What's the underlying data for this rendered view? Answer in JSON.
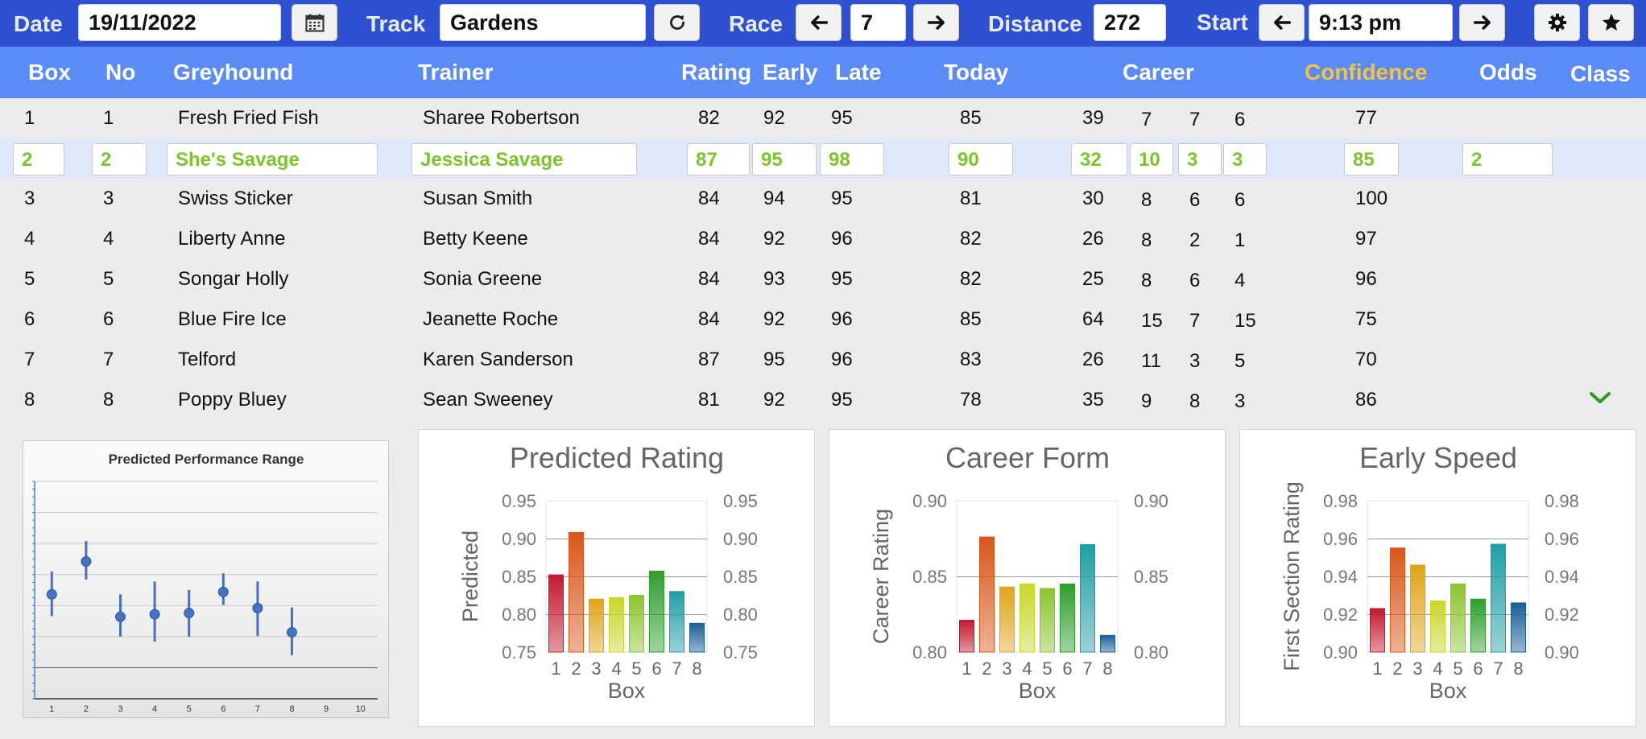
{
  "toolbar": {
    "date_label": "Date",
    "date_value": "19/11/2022",
    "calendar_icon": "calendar-icon",
    "track_label": "Track",
    "track_value": "Gardens",
    "refresh_icon": "refresh-icon",
    "race_label": "Race",
    "race_value": "7",
    "distance_label": "Distance",
    "distance_value": "272",
    "start_label": "Start",
    "start_value": "9:13 pm",
    "settings_icon": "gear-icon",
    "favorite_icon": "star-icon"
  },
  "table": {
    "headers": {
      "box": "Box",
      "no": "No",
      "greyhound": "Greyhound",
      "trainer": "Trainer",
      "rating": "Rating",
      "early": "Early",
      "late": "Late",
      "today": "Today",
      "career": "Career",
      "confidence": "Confidence",
      "odds": "Odds",
      "class": "Class"
    },
    "rows": [
      {
        "box": "1",
        "no": "1",
        "greyhound": "Fresh Fried Fish",
        "trainer": "Sharee Robertson",
        "rating": "82",
        "early": "92",
        "late": "95",
        "today": "85",
        "career_a": "39",
        "career_b": "7",
        "career_c": "7",
        "career_d": "6",
        "confidence": "77",
        "odds": "",
        "class": ""
      },
      {
        "box": "2",
        "no": "2",
        "greyhound": "She's Savage",
        "trainer": "Jessica Savage",
        "rating": "87",
        "early": "95",
        "late": "98",
        "today": "90",
        "career_a": "32",
        "career_b": "10",
        "career_c": "3",
        "career_d": "3",
        "confidence": "85",
        "odds": "2",
        "class": ""
      },
      {
        "box": "3",
        "no": "3",
        "greyhound": "Swiss Sticker",
        "trainer": "Susan Smith",
        "rating": "84",
        "early": "94",
        "late": "95",
        "today": "81",
        "career_a": "30",
        "career_b": "8",
        "career_c": "6",
        "career_d": "6",
        "confidence": "100",
        "odds": "",
        "class": ""
      },
      {
        "box": "4",
        "no": "4",
        "greyhound": "Liberty Anne",
        "trainer": "Betty Keene",
        "rating": "84",
        "early": "92",
        "late": "96",
        "today": "82",
        "career_a": "26",
        "career_b": "8",
        "career_c": "2",
        "career_d": "1",
        "confidence": "97",
        "odds": "",
        "class": ""
      },
      {
        "box": "5",
        "no": "5",
        "greyhound": "Songar Holly",
        "trainer": "Sonia Greene",
        "rating": "84",
        "early": "93",
        "late": "95",
        "today": "82",
        "career_a": "25",
        "career_b": "8",
        "career_c": "6",
        "career_d": "4",
        "confidence": "96",
        "odds": "",
        "class": ""
      },
      {
        "box": "6",
        "no": "6",
        "greyhound": "Blue Fire Ice",
        "trainer": "Jeanette Roche",
        "rating": "84",
        "early": "92",
        "late": "96",
        "today": "85",
        "career_a": "64",
        "career_b": "15",
        "career_c": "7",
        "career_d": "15",
        "confidence": "75",
        "odds": "",
        "class": ""
      },
      {
        "box": "7",
        "no": "7",
        "greyhound": "Telford",
        "trainer": "Karen Sanderson",
        "rating": "87",
        "early": "95",
        "late": "96",
        "today": "83",
        "career_a": "26",
        "career_b": "11",
        "career_c": "3",
        "career_d": "5",
        "confidence": "70",
        "odds": "",
        "class": ""
      },
      {
        "box": "8",
        "no": "8",
        "greyhound": "Poppy Bluey",
        "trainer": "Sean Sweeney",
        "rating": "81",
        "early": "92",
        "late": "95",
        "today": "78",
        "career_a": "35",
        "career_b": "9",
        "career_c": "8",
        "career_d": "3",
        "confidence": "86",
        "odds": "",
        "class": ""
      }
    ],
    "selected_row": 1,
    "selected_color": "#7bc42c",
    "expand_icon": "chevron-down-icon"
  },
  "colors": {
    "toolbar_bg": "#2f51d1",
    "header_bg": "#5b8cf5",
    "confidence_header": "#f5c343",
    "bar_palette": [
      "#c4182e",
      "#d9561a",
      "#e0a418",
      "#c9d62a",
      "#8cc42c",
      "#2e9e2c",
      "#1e9ea6",
      "#1a5f96"
    ]
  },
  "chart_data": [
    {
      "type": "scatter",
      "title": "Predicted Performance Range",
      "x": [
        1,
        2,
        3,
        4,
        5,
        6,
        7,
        8
      ],
      "y": [
        0.868,
        0.921,
        0.832,
        0.836,
        0.838,
        0.872,
        0.846,
        0.807
      ],
      "y_low": [
        0.833,
        0.892,
        0.8,
        0.792,
        0.8,
        0.851,
        0.801,
        0.77
      ],
      "y_high": [
        0.905,
        0.954,
        0.868,
        0.889,
        0.875,
        0.902,
        0.889,
        0.847
      ],
      "xticks": [
        "1",
        "2",
        "3",
        "4",
        "5",
        "6",
        "7",
        "8",
        "9",
        "10"
      ],
      "xlim": [
        0.5,
        10.5
      ],
      "ylim": [
        0.7,
        1.05
      ],
      "grid": true,
      "color": "#4472c4"
    },
    {
      "type": "bar",
      "title": "Predicted Rating",
      "xlabel": "Box",
      "ylabel": "Predicted",
      "categories": [
        "1",
        "2",
        "3",
        "4",
        "5",
        "6",
        "7",
        "8"
      ],
      "values": [
        0.852,
        0.908,
        0.82,
        0.822,
        0.825,
        0.857,
        0.83,
        0.788
      ],
      "ylim": [
        0.75,
        0.95
      ],
      "yticks": [
        "0.75",
        "0.80",
        "0.85",
        "0.90",
        "0.95"
      ]
    },
    {
      "type": "bar",
      "title": "Career Form",
      "xlabel": "Box",
      "ylabel": "Career Rating",
      "categories": [
        "1",
        "2",
        "3",
        "4",
        "5",
        "6",
        "7",
        "8"
      ],
      "values": [
        0.821,
        0.876,
        0.843,
        0.845,
        0.842,
        0.845,
        0.871,
        0.811
      ],
      "ylim": [
        0.8,
        0.9
      ],
      "yticks": [
        "0.80",
        "0.85",
        "0.90"
      ]
    },
    {
      "type": "bar",
      "title": "Early Speed",
      "xlabel": "Box",
      "ylabel": "First Section Rating",
      "categories": [
        "1",
        "2",
        "3",
        "4",
        "5",
        "6",
        "7",
        "8"
      ],
      "values": [
        0.923,
        0.955,
        0.946,
        0.927,
        0.936,
        0.928,
        0.957,
        0.926
      ],
      "ylim": [
        0.9,
        0.98
      ],
      "yticks": [
        "0.90",
        "0.92",
        "0.94",
        "0.96",
        "0.98"
      ]
    }
  ]
}
